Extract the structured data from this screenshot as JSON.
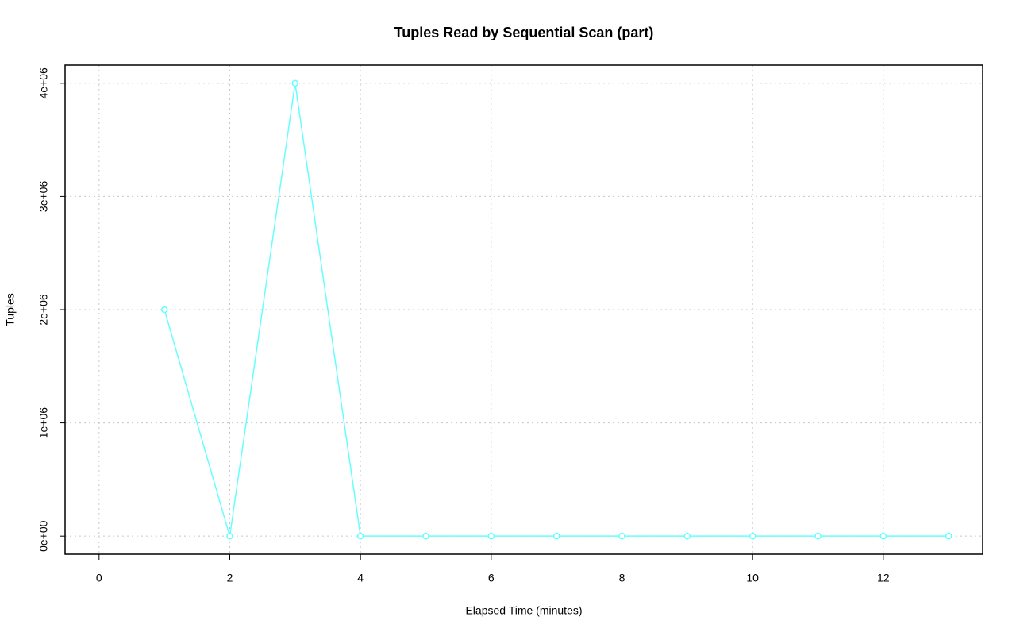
{
  "chart_data": {
    "type": "line",
    "title": "Tuples Read by Sequential Scan (part)",
    "x_label": "Elapsed Time (minutes)",
    "y_label": "Tuples",
    "x": [
      1,
      2,
      3,
      4,
      5,
      6,
      7,
      8,
      9,
      10,
      11,
      12,
      13
    ],
    "values": [
      2000000,
      0,
      4000000,
      0,
      0,
      0,
      0,
      0,
      0,
      0,
      0,
      0,
      0
    ],
    "color": "#66ffff",
    "xlim": [
      -0.52,
      13.52
    ],
    "xticks": [
      0,
      2,
      4,
      6,
      8,
      10,
      12
    ],
    "ylim": [
      -160000,
      4160000
    ],
    "yticks": [
      {
        "value": 0,
        "label": "0e+00"
      },
      {
        "value": 1000000,
        "label": "1e+06"
      },
      {
        "value": 2000000,
        "label": "2e+06"
      },
      {
        "value": 3000000,
        "label": "3e+06"
      },
      {
        "value": 4000000,
        "label": "4e+06"
      }
    ],
    "grid": true
  }
}
